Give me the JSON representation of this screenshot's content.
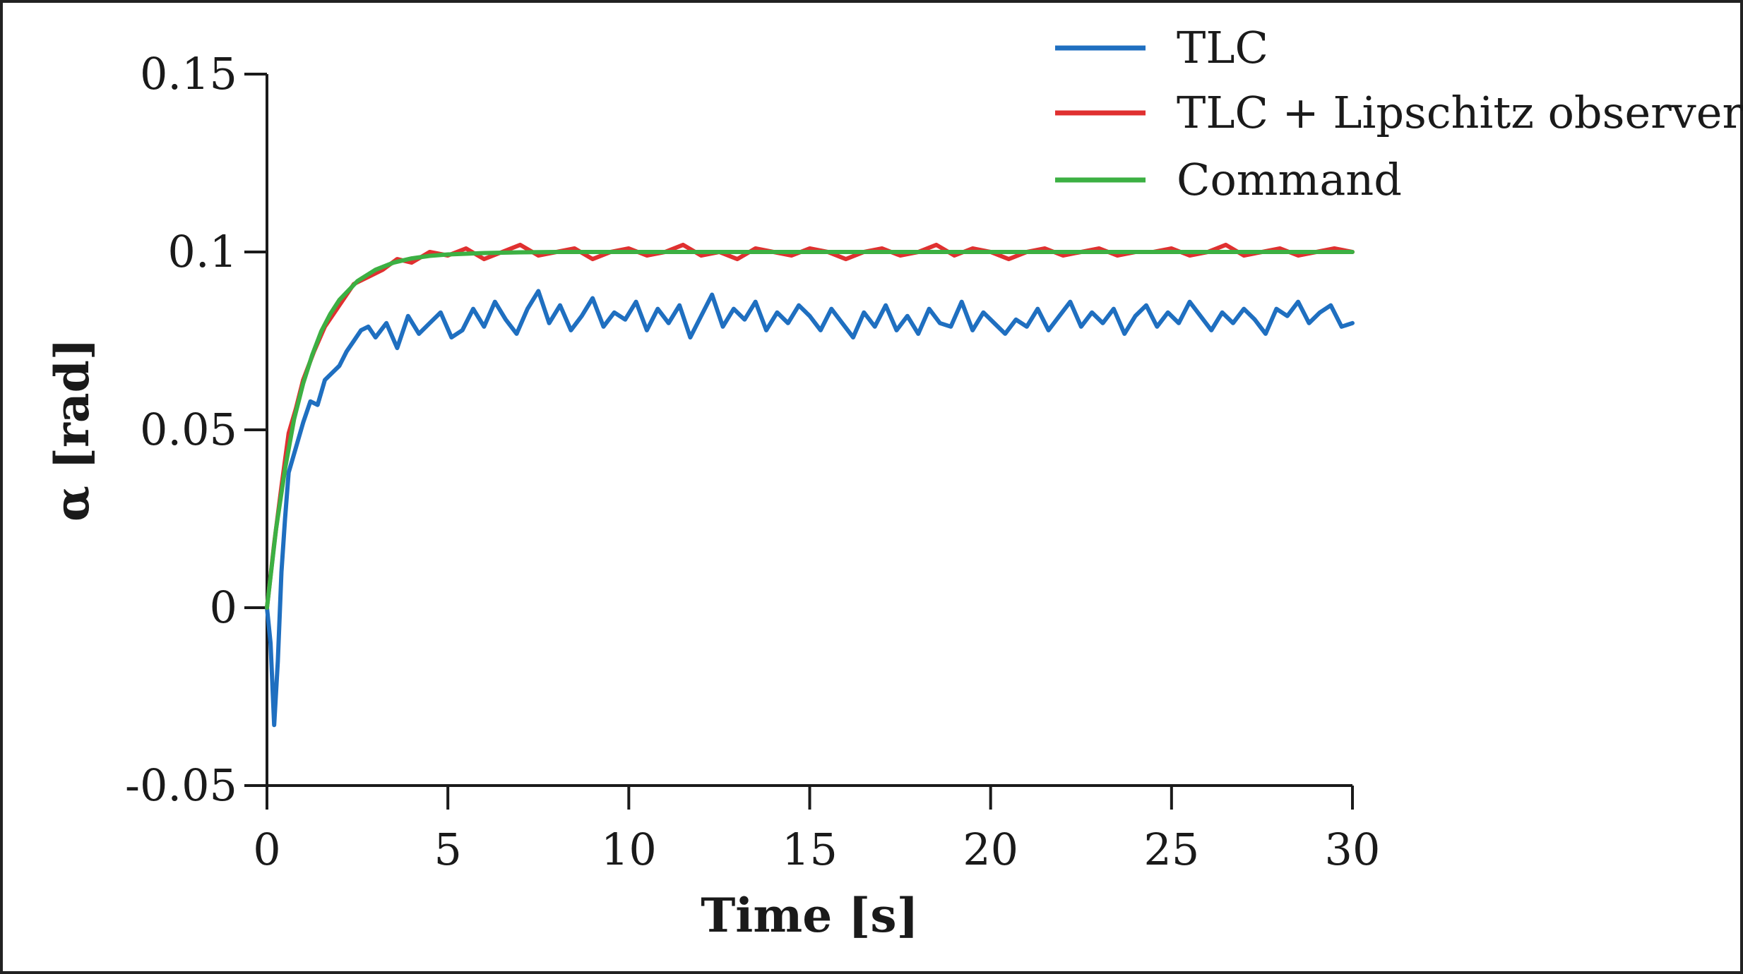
{
  "chart_data": {
    "type": "line",
    "xlabel": "Time [s]",
    "ylabel": "α [rad]",
    "xlim": [
      0,
      30
    ],
    "ylim": [
      -0.05,
      0.15
    ],
    "xticks": [
      0,
      5,
      10,
      15,
      20,
      25,
      30
    ],
    "xtick_labels": [
      "0",
      "5",
      "10",
      "15",
      "20",
      "25",
      "30"
    ],
    "yticks": [
      -0.05,
      0,
      0.05,
      0.1,
      0.15
    ],
    "ytick_labels": [
      "-0.05",
      "0",
      "0.05",
      "0.1",
      "0.15"
    ],
    "grid": false,
    "legend_position": "top-right",
    "series": [
      {
        "name": "TLC",
        "color": "#1f6fc0",
        "x": [
          0,
          0.1,
          0.2,
          0.3,
          0.4,
          0.5,
          0.6,
          0.8,
          1.0,
          1.2,
          1.4,
          1.6,
          1.8,
          2.0,
          2.2,
          2.4,
          2.6,
          2.8,
          3.0,
          3.3,
          3.6,
          3.9,
          4.2,
          4.5,
          4.8,
          5.1,
          5.4,
          5.7,
          6.0,
          6.3,
          6.6,
          6.9,
          7.2,
          7.5,
          7.8,
          8.1,
          8.4,
          8.7,
          9.0,
          9.3,
          9.6,
          9.9,
          10.2,
          10.5,
          10.8,
          11.1,
          11.4,
          11.7,
          12.0,
          12.3,
          12.6,
          12.9,
          13.2,
          13.5,
          13.8,
          14.1,
          14.4,
          14.7,
          15.0,
          15.3,
          15.6,
          15.9,
          16.2,
          16.5,
          16.8,
          17.1,
          17.4,
          17.7,
          18.0,
          18.3,
          18.6,
          18.9,
          19.2,
          19.5,
          19.8,
          20.1,
          20.4,
          20.7,
          21.0,
          21.3,
          21.6,
          21.9,
          22.2,
          22.5,
          22.8,
          23.1,
          23.4,
          23.7,
          24.0,
          24.3,
          24.6,
          24.9,
          25.2,
          25.5,
          25.8,
          26.1,
          26.4,
          26.7,
          27.0,
          27.3,
          27.6,
          27.9,
          28.2,
          28.5,
          28.8,
          29.1,
          29.4,
          29.7,
          30.0
        ],
        "values": [
          0.0,
          -0.01,
          -0.033,
          -0.015,
          0.01,
          0.025,
          0.038,
          0.045,
          0.052,
          0.058,
          0.057,
          0.064,
          0.066,
          0.068,
          0.072,
          0.075,
          0.078,
          0.079,
          0.076,
          0.08,
          0.073,
          0.082,
          0.077,
          0.08,
          0.083,
          0.076,
          0.078,
          0.084,
          0.079,
          0.086,
          0.081,
          0.077,
          0.084,
          0.089,
          0.08,
          0.085,
          0.078,
          0.082,
          0.087,
          0.079,
          0.083,
          0.081,
          0.086,
          0.078,
          0.084,
          0.08,
          0.085,
          0.076,
          0.082,
          0.088,
          0.079,
          0.084,
          0.081,
          0.086,
          0.078,
          0.083,
          0.08,
          0.085,
          0.082,
          0.078,
          0.084,
          0.08,
          0.076,
          0.083,
          0.079,
          0.085,
          0.078,
          0.082,
          0.077,
          0.084,
          0.08,
          0.079,
          0.086,
          0.078,
          0.083,
          0.08,
          0.077,
          0.081,
          0.079,
          0.084,
          0.078,
          0.082,
          0.086,
          0.079,
          0.083,
          0.08,
          0.084,
          0.077,
          0.082,
          0.085,
          0.079,
          0.083,
          0.08,
          0.086,
          0.082,
          0.078,
          0.083,
          0.08,
          0.084,
          0.081,
          0.077,
          0.084,
          0.082,
          0.086,
          0.08,
          0.083,
          0.085,
          0.079,
          0.08
        ]
      },
      {
        "name": "TLC + Lipschitz observer",
        "color": "#e03030",
        "x": [
          0,
          0.2,
          0.4,
          0.6,
          0.8,
          1.0,
          1.3,
          1.6,
          2.0,
          2.4,
          2.8,
          3.2,
          3.6,
          4.0,
          4.5,
          5.0,
          5.5,
          6.0,
          6.5,
          7.0,
          7.5,
          8.0,
          8.5,
          9.0,
          9.5,
          10.0,
          10.5,
          11.0,
          11.5,
          12.0,
          12.5,
          13.0,
          13.5,
          14.0,
          14.5,
          15.0,
          15.5,
          16.0,
          16.5,
          17.0,
          17.5,
          18.0,
          18.5,
          19.0,
          19.5,
          20.0,
          20.5,
          21.0,
          21.5,
          22.0,
          22.5,
          23.0,
          23.5,
          24.0,
          24.5,
          25.0,
          25.5,
          26.0,
          26.5,
          27.0,
          27.5,
          28.0,
          28.5,
          29.0,
          29.5,
          30.0
        ],
        "values": [
          0.0,
          0.018,
          0.034,
          0.049,
          0.056,
          0.064,
          0.072,
          0.079,
          0.085,
          0.091,
          0.093,
          0.095,
          0.098,
          0.097,
          0.1,
          0.099,
          0.101,
          0.098,
          0.1,
          0.102,
          0.099,
          0.1,
          0.101,
          0.098,
          0.1,
          0.101,
          0.099,
          0.1,
          0.102,
          0.099,
          0.1,
          0.098,
          0.101,
          0.1,
          0.099,
          0.101,
          0.1,
          0.098,
          0.1,
          0.101,
          0.099,
          0.1,
          0.102,
          0.099,
          0.101,
          0.1,
          0.098,
          0.1,
          0.101,
          0.099,
          0.1,
          0.101,
          0.099,
          0.1,
          0.1,
          0.101,
          0.099,
          0.1,
          0.102,
          0.099,
          0.1,
          0.101,
          0.099,
          0.1,
          0.101,
          0.1
        ]
      },
      {
        "name": "Command",
        "color": "#3cb043",
        "x": [
          0,
          0.25,
          0.5,
          0.75,
          1.0,
          1.25,
          1.5,
          1.75,
          2.0,
          2.5,
          3.0,
          3.5,
          4.0,
          4.5,
          5.0,
          6.0,
          7.0,
          8.0,
          10.0,
          12.0,
          15.0,
          20.0,
          25.0,
          30.0
        ],
        "values": [
          0.0,
          0.022,
          0.039,
          0.053,
          0.063,
          0.071,
          0.0777,
          0.0826,
          0.0865,
          0.0918,
          0.095,
          0.097,
          0.0982,
          0.0989,
          0.0993,
          0.0997,
          0.0999,
          0.1,
          0.1,
          0.1,
          0.1,
          0.1,
          0.1,
          0.1
        ]
      }
    ]
  }
}
